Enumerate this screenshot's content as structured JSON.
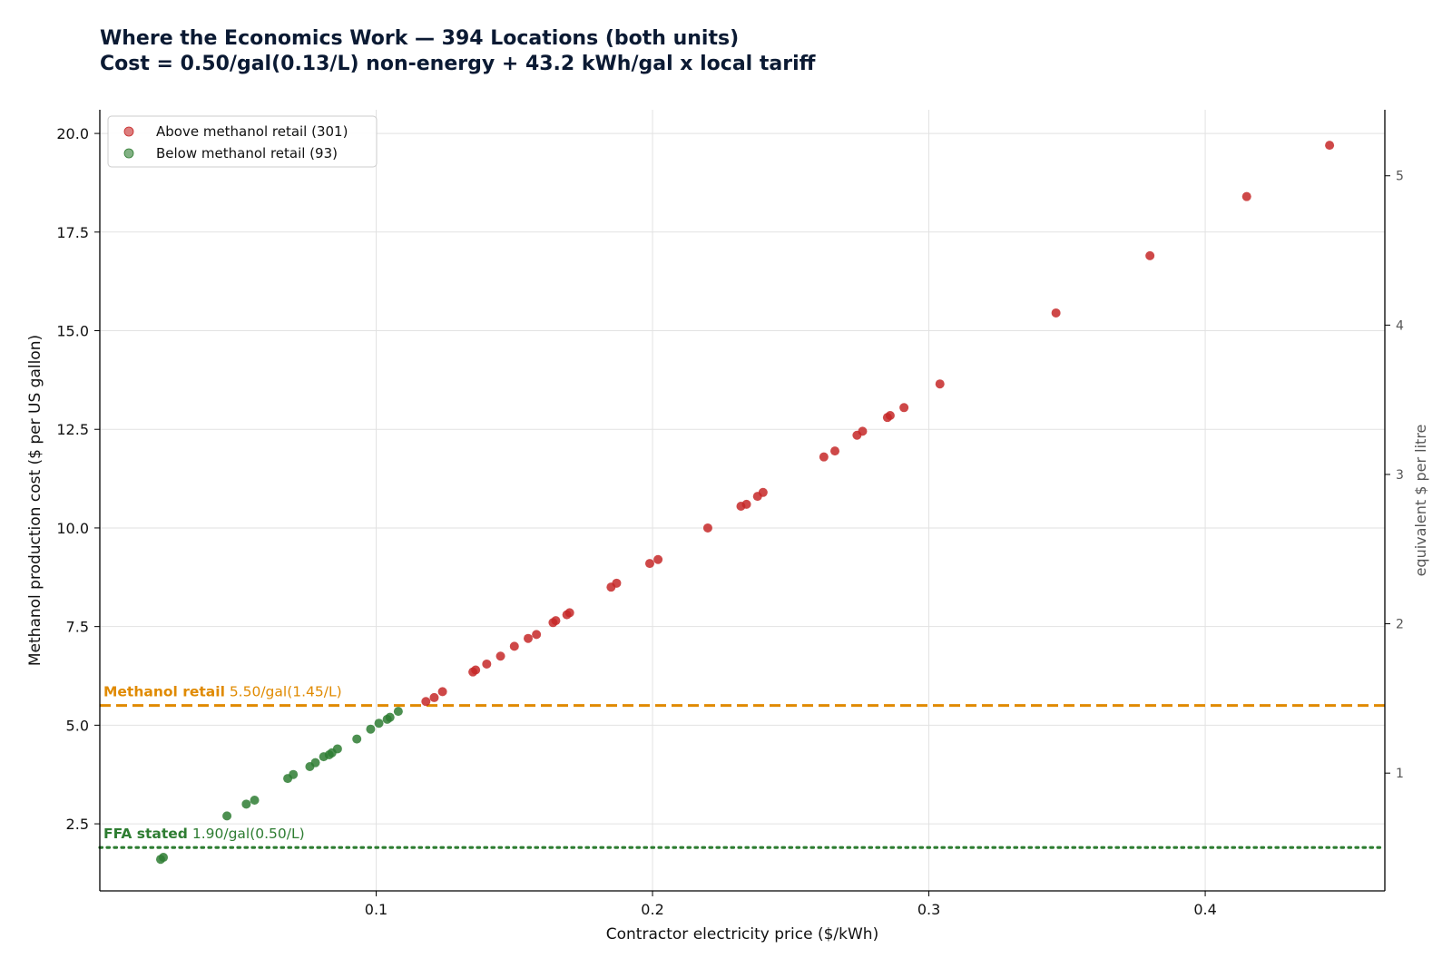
{
  "chart_data": {
    "type": "scatter",
    "title": "Where the Economics Work — 394 Locations (both units)",
    "subtitle_bold_prefix": "Cost = ",
    "subtitle_rest": "0.50/gal(0.13/L) non-energy + 43.2 kWh/gal x local tariff",
    "xlabel": "Contractor electricity price ($/kWh)",
    "ylabel": "Methanol production cost ($ per US gallon)",
    "y2label": "equivalent $ per litre",
    "xlim": [
      0.0,
      0.465
    ],
    "ylim": [
      0.8,
      20.6
    ],
    "y2_scale": 0.264172,
    "x_ticks": [
      0.1,
      0.2,
      0.3,
      0.4
    ],
    "x_tick_labels": [
      "0.1",
      "0.2",
      "0.3",
      "0.4"
    ],
    "y_ticks": [
      2.5,
      5.0,
      7.5,
      10.0,
      12.5,
      15.0,
      17.5,
      20.0
    ],
    "y_tick_labels": [
      "2.5",
      "5.0",
      "7.5",
      "10.0",
      "12.5",
      "15.0",
      "17.5",
      "20.0"
    ],
    "y2_ticks": [
      1,
      2,
      3,
      4,
      5
    ],
    "y2_tick_labels": [
      "1",
      "2",
      "3",
      "4",
      "5"
    ],
    "grid": true,
    "legend_position": "top-left",
    "series": [
      {
        "name": "Above methanol retail (301)",
        "color": "#c62828",
        "x": [
          0.118,
          0.121,
          0.124,
          0.135,
          0.136,
          0.14,
          0.145,
          0.15,
          0.155,
          0.158,
          0.164,
          0.165,
          0.169,
          0.17,
          0.185,
          0.187,
          0.199,
          0.202,
          0.22,
          0.232,
          0.234,
          0.238,
          0.24,
          0.262,
          0.266,
          0.274,
          0.276,
          0.285,
          0.286,
          0.291,
          0.304,
          0.346,
          0.38,
          0.415,
          0.445
        ],
        "y": [
          5.6,
          5.7,
          5.85,
          6.35,
          6.4,
          6.55,
          6.75,
          7.0,
          7.2,
          7.3,
          7.6,
          7.65,
          7.8,
          7.85,
          8.5,
          8.6,
          9.1,
          9.2,
          10.0,
          10.55,
          10.6,
          10.8,
          10.9,
          11.8,
          11.95,
          12.35,
          12.45,
          12.8,
          12.85,
          13.05,
          13.65,
          15.45,
          16.9,
          18.4,
          19.7
        ]
      },
      {
        "name": "Below methanol retail (93)",
        "color": "#2e7d32",
        "x": [
          0.022,
          0.023,
          0.046,
          0.053,
          0.056,
          0.068,
          0.07,
          0.076,
          0.078,
          0.081,
          0.083,
          0.084,
          0.086,
          0.093,
          0.098,
          0.101,
          0.104,
          0.105,
          0.108
        ],
        "y": [
          1.6,
          1.65,
          2.7,
          3.0,
          3.1,
          3.65,
          3.75,
          3.95,
          4.05,
          4.2,
          4.25,
          4.3,
          4.4,
          4.65,
          4.9,
          5.05,
          5.15,
          5.2,
          5.35
        ]
      }
    ],
    "reference_lines": [
      {
        "name": "Methanol retail",
        "value": 5.5,
        "label_bold": "Methanol retail",
        "label_rest": " 5.50/gal(1.45/L)",
        "color": "#e08a00",
        "style": "dashed"
      },
      {
        "name": "FFA stated",
        "value": 1.9,
        "label_bold": "FFA stated",
        "label_rest": " 1.90/gal(0.50/L)",
        "color": "#2e7d32",
        "style": "dotted"
      }
    ]
  }
}
